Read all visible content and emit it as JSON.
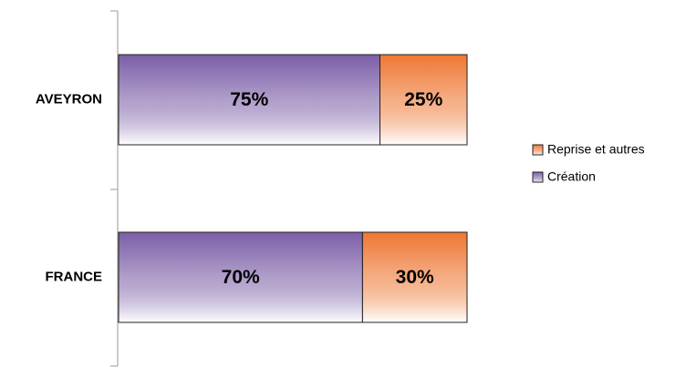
{
  "chart_data": {
    "type": "stacked-bar-horizontal",
    "categories": [
      "AVEYRON",
      "FRANCE"
    ],
    "series": [
      {
        "name": "Création",
        "color": "#7b5ea7",
        "values": [
          75,
          70
        ],
        "value_labels": [
          "75%",
          "70%"
        ]
      },
      {
        "name": "Reprise et autres",
        "color": "#ee7733",
        "values": [
          25,
          30
        ],
        "value_labels": [
          "25%",
          "30%"
        ]
      }
    ],
    "legend": "right"
  }
}
